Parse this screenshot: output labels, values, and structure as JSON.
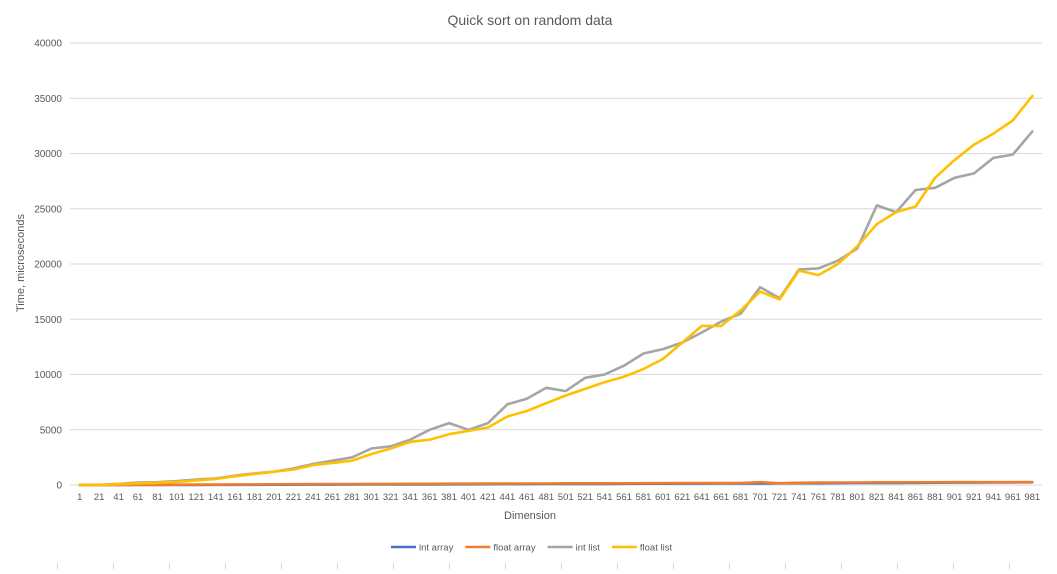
{
  "chart_data": {
    "type": "line",
    "title": "Quick sort on random data",
    "xlabel": "Dimension",
    "ylabel": "Time, microseconds",
    "ylim": [
      0,
      40000
    ],
    "yticks": [
      0,
      5000,
      10000,
      15000,
      20000,
      25000,
      30000,
      35000,
      40000
    ],
    "grid": true,
    "legend_position": "bottom",
    "categories": [
      "1",
      "21",
      "41",
      "61",
      "81",
      "101",
      "121",
      "141",
      "161",
      "181",
      "201",
      "221",
      "241",
      "261",
      "281",
      "301",
      "321",
      "341",
      "361",
      "381",
      "401",
      "421",
      "441",
      "461",
      "481",
      "501",
      "521",
      "541",
      "561",
      "581",
      "601",
      "621",
      "641",
      "661",
      "681",
      "701",
      "721",
      "741",
      "761",
      "781",
      "801",
      "821",
      "841",
      "861",
      "881",
      "901",
      "921",
      "941",
      "961",
      "981"
    ],
    "series": [
      {
        "name": "int array",
        "color": "#4472c4",
        "values": [
          2,
          3,
          5,
          7,
          9,
          11,
          13,
          16,
          19,
          22,
          26,
          29,
          33,
          37,
          41,
          45,
          49,
          54,
          58,
          63,
          67,
          72,
          77,
          82,
          87,
          92,
          97,
          103,
          108,
          114,
          119,
          125,
          131,
          137,
          143,
          149,
          155,
          161,
          167,
          174,
          180,
          187,
          193,
          200,
          207,
          214,
          221,
          228,
          235,
          242
        ]
      },
      {
        "name": "float array",
        "color": "#ed7d31",
        "values": [
          5,
          5,
          10,
          15,
          20,
          30,
          35,
          40,
          50,
          55,
          60,
          70,
          80,
          90,
          90,
          100,
          100,
          110,
          110,
          120,
          120,
          130,
          130,
          140,
          140,
          150,
          150,
          150,
          150,
          160,
          160,
          170,
          170,
          170,
          180,
          250,
          150,
          200,
          220,
          230,
          230,
          240,
          240,
          240,
          240,
          250,
          250,
          250,
          250,
          260
        ]
      },
      {
        "name": "int list",
        "color": "#a5a5a5",
        "values": [
          0,
          20,
          100,
          220,
          250,
          350,
          500,
          600,
          850,
          1050,
          1200,
          1500,
          1900,
          2200,
          2500,
          3300,
          3500,
          4100,
          5000,
          5600,
          5000,
          5600,
          7300,
          7800,
          8800,
          8500,
          9700,
          10000,
          10800,
          11900,
          12300,
          12900,
          13800,
          14800,
          15500,
          17900,
          16900,
          19500,
          19600,
          20300,
          21400,
          25300,
          24700,
          26700,
          26900,
          27800,
          28200,
          29600,
          29900,
          32000
        ]
      },
      {
        "name": "float list",
        "color": "#ffc000",
        "values": [
          0,
          10,
          60,
          150,
          200,
          280,
          420,
          550,
          800,
          1000,
          1200,
          1400,
          1800,
          2000,
          2200,
          2800,
          3300,
          3900,
          4100,
          4600,
          4900,
          5200,
          6200,
          6700,
          7400,
          8100,
          8700,
          9300,
          9800,
          10500,
          11400,
          12900,
          14400,
          14400,
          15800,
          17500,
          16800,
          19400,
          19000,
          20000,
          21600,
          23600,
          24700,
          25200,
          27800,
          29400,
          30800,
          31800,
          33000,
          35200
        ]
      }
    ]
  }
}
